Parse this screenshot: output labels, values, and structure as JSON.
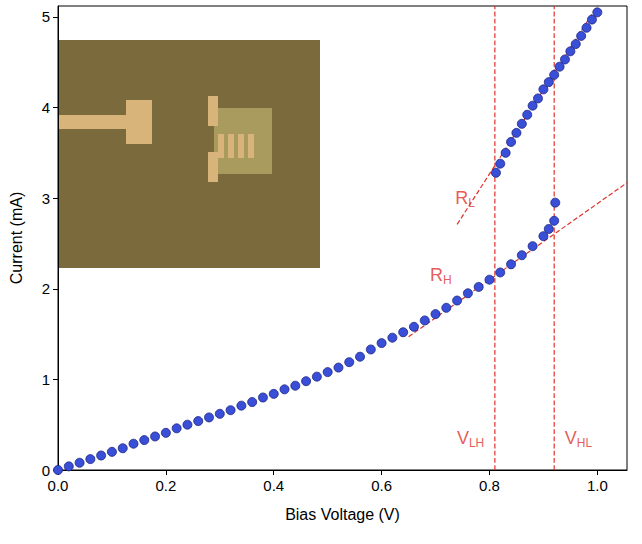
{
  "chart_data": {
    "type": "scatter",
    "x_label": "Bias Voltage (V)",
    "y_label": "Current (mA)",
    "xlim": [
      0,
      1.055
    ],
    "ylim": [
      0,
      5.12
    ],
    "xticks": [
      {
        "value": 0,
        "label": "0.0"
      },
      {
        "value": 0.2,
        "label": "0.2"
      },
      {
        "value": 0.4,
        "label": "0.4"
      },
      {
        "value": 0.6,
        "label": "0.6"
      },
      {
        "value": 0.8,
        "label": "0.8"
      },
      {
        "value": 1.0,
        "label": "1.0"
      }
    ],
    "yticks": [
      0,
      1,
      2,
      3,
      4,
      5
    ],
    "grid": false,
    "marker": "circle",
    "series": [
      {
        "color": "#3a4fd8",
        "x": [
          0,
          0.02,
          0.04,
          0.06,
          0.08,
          0.1,
          0.12,
          0.14,
          0.16,
          0.18,
          0.2,
          0.22,
          0.24,
          0.26,
          0.28,
          0.3,
          0.32,
          0.34,
          0.36,
          0.38,
          0.4,
          0.42,
          0.44,
          0.46,
          0.48,
          0.5,
          0.52,
          0.54,
          0.56,
          0.58,
          0.6,
          0.62,
          0.64,
          0.66,
          0.68,
          0.7,
          0.72,
          0.74,
          0.76,
          0.78,
          0.8,
          0.82,
          0.84,
          0.86,
          0.88,
          0.9,
          0.91,
          0.92,
          0.922
        ],
        "values": [
          0,
          0.04,
          0.08,
          0.12,
          0.16,
          0.2,
          0.24,
          0.29,
          0.33,
          0.37,
          0.41,
          0.46,
          0.5,
          0.54,
          0.58,
          0.62,
          0.66,
          0.71,
          0.75,
          0.8,
          0.84,
          0.89,
          0.93,
          0.98,
          1.03,
          1.08,
          1.13,
          1.19,
          1.25,
          1.33,
          1.4,
          1.46,
          1.52,
          1.58,
          1.65,
          1.72,
          1.79,
          1.87,
          1.95,
          2.02,
          2.1,
          2.18,
          2.27,
          2.37,
          2.47,
          2.58,
          2.66,
          2.75,
          2.95
        ]
      },
      {
        "color": "#3a4fd8",
        "x": [
          0.812,
          0.82,
          0.83,
          0.84,
          0.85,
          0.86,
          0.87,
          0.88,
          0.89,
          0.9,
          0.91,
          0.92,
          0.93,
          0.94,
          0.95,
          0.96,
          0.97,
          0.98,
          0.99,
          1.0
        ],
        "values": [
          3.28,
          3.38,
          3.5,
          3.62,
          3.72,
          3.82,
          3.92,
          4.02,
          4.1,
          4.2,
          4.28,
          4.36,
          4.45,
          4.53,
          4.62,
          4.7,
          4.79,
          4.88,
          4.97,
          5.05
        ]
      }
    ],
    "guides": [
      {
        "line_style": "dashed",
        "color": "#e0312b",
        "x": [
          0.74,
          1.03
        ],
        "y": [
          2.71,
          5.4
        ]
      },
      {
        "line_style": "dashed",
        "color": "#e0312b",
        "x": [
          0.65,
          1.055
        ],
        "y": [
          1.47,
          3.17
        ]
      },
      {
        "line_style": "dashed",
        "color": "#e0312b",
        "x": [
          0.81,
          0.81
        ],
        "y": [
          0,
          5.12
        ]
      },
      {
        "line_style": "dashed",
        "color": "#e0312b",
        "x": [
          0.92,
          0.92
        ],
        "y": [
          0,
          5.12
        ]
      }
    ],
    "annotations": [
      {
        "text": "R",
        "subscript": "L",
        "x": 0.755,
        "y": 3.0,
        "color": "#e0312b"
      },
      {
        "text": "R",
        "subscript": "H",
        "x": 0.71,
        "y": 2.15,
        "color": "#e0312b"
      },
      {
        "text": "V",
        "subscript": "LH",
        "x": 0.765,
        "y": 0.35,
        "color": "#e0312b"
      },
      {
        "text": "V",
        "subscript": "HL",
        "x": 0.965,
        "y": 0.35,
        "color": "#e0312b"
      }
    ]
  }
}
